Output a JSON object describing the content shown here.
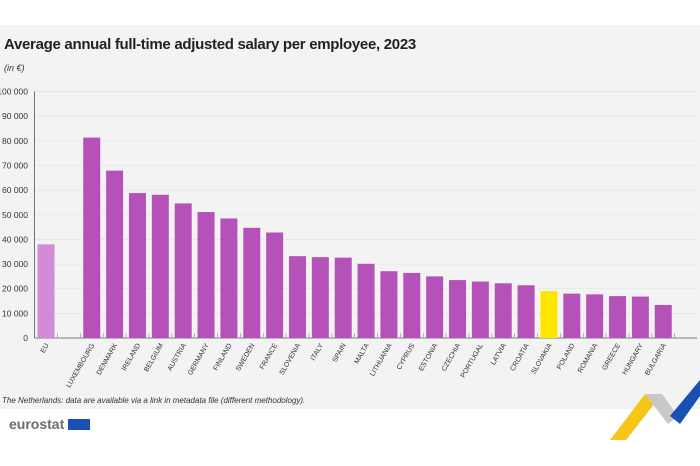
{
  "chart_data": {
    "type": "bar",
    "title": "Average annual full-time adjusted salary per employee, 2023",
    "subtitle": "(in €)",
    "categories": [
      "EU",
      "",
      "LUXEMBOURG",
      "DENMARK",
      "IRELAND",
      "BELGIUM",
      "AUSTRIA",
      "GERMANY",
      "FINLAND",
      "SWEDEN",
      "FRANCE",
      "SLOVENIA",
      "ITALY",
      "SPAIN",
      "MALTA",
      "LITHUANIA",
      "CYPRUS",
      "ESTONIA",
      "CZECHIA",
      "PORTUGAL",
      "LATVIA",
      "CROATIA",
      "SLOVAKIA",
      "POLAND",
      "ROMANIA",
      "GREECE",
      "HUNGARY",
      "BULGARIA"
    ],
    "values": [
      38000,
      null,
      81300,
      67900,
      58800,
      58100,
      54600,
      51100,
      48500,
      44700,
      42800,
      33200,
      32800,
      32600,
      30100,
      27100,
      26400,
      25000,
      23500,
      22900,
      22200,
      21400,
      19000,
      18000,
      17700,
      17000,
      16800,
      13400
    ],
    "ylim": [
      0,
      100000
    ],
    "yticks": [
      0,
      10000,
      20000,
      30000,
      40000,
      50000,
      60000,
      70000,
      80000,
      90000,
      100000
    ],
    "ytick_labels": [
      "0",
      "10 000",
      "20 000",
      "30 000",
      "40 000",
      "50 000",
      "60 000",
      "70 000",
      "80 000",
      "90 000",
      "100 000"
    ],
    "grid": true,
    "colors": {
      "default": "#b452b9",
      "eu": "#d38bd8",
      "highlight": "#ffe600"
    },
    "highlight_category": "SLOVAKIA",
    "note": "The Netherlands: data are available via a link in metadata file (different methodology)."
  },
  "footer": {
    "logo": "eurostat"
  }
}
